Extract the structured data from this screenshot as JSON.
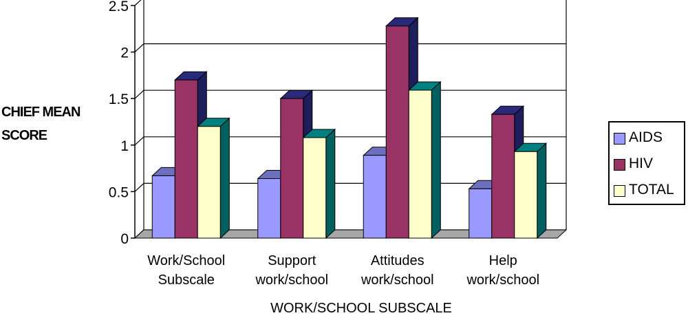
{
  "chart_data": {
    "type": "bar",
    "title": "",
    "ylabel_lines": [
      "CHIEF MEAN",
      "SCORE"
    ],
    "xlabel": "WORK/SCHOOL SUBSCALE",
    "categories": [
      [
        "Work/School",
        "Subscale"
      ],
      [
        "Support",
        "work/school"
      ],
      [
        "Attitudes",
        "work/school"
      ],
      [
        "Help",
        "work/school"
      ]
    ],
    "series": [
      {
        "name": "AIDS",
        "values": [
          0.67,
          0.64,
          0.89,
          0.53
        ]
      },
      {
        "name": "HIV",
        "values": [
          1.7,
          1.5,
          2.28,
          1.33
        ]
      },
      {
        "name": "TOTAL",
        "values": [
          1.2,
          1.08,
          1.59,
          0.93
        ]
      }
    ],
    "ylim": [
      0,
      2.5
    ],
    "yticks": [
      "0",
      "0.5",
      "1",
      "1.5",
      "2",
      "2.5"
    ],
    "grid": true,
    "legend_position": "right",
    "style": "3d-clustered-column",
    "colors": {
      "AIDS": {
        "front": "#9999ff",
        "top": "#6f6fc0",
        "side": "#4d4d99"
      },
      "HIV": {
        "front": "#993366",
        "top": "#2a2a7a",
        "side": "#1e1e5c"
      },
      "TOTAL": {
        "front": "#ffffcc",
        "top": "#008080",
        "side": "#005f5f"
      },
      "floor": "#a6a6a6",
      "grid": "#000000"
    }
  }
}
